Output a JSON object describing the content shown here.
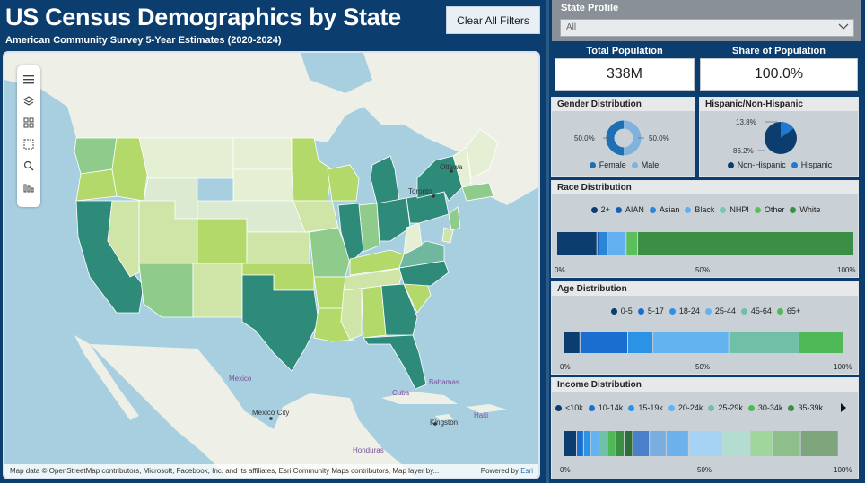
{
  "header": {
    "title": "US Census Demographics by State",
    "subtitle": "American Community Survey 5-Year Estimates (2020-2024)",
    "clear_filters_label": "Clear All Filters"
  },
  "map": {
    "labels": {
      "ottawa": "Ottawa",
      "toronto": "Toronto",
      "mexico": "Mexico",
      "mexico_city": "Mexico City",
      "cuba": "Cuba",
      "bahamas": "Bahamas",
      "kingston": "Kingston",
      "haiti": "Haiti",
      "honduras": "Honduras"
    },
    "attribution": "Map data © OpenStreetMap contributors, Microsoft, Facebook, Inc. and its affiliates, Esri Community Maps contributors, Map layer by...",
    "powered_by": "Powered by",
    "esri": "Esri",
    "tools": [
      "menu-icon",
      "layers-icon",
      "grid-select-icon",
      "rect-select-icon",
      "search-icon",
      "chart-icon"
    ]
  },
  "state_profile": {
    "label": "State Profile",
    "selected": "All"
  },
  "kpis": {
    "total_population_label": "Total Population",
    "total_population_value": "338M",
    "share_label": "Share of Population",
    "share_value": "100.0%"
  },
  "gender": {
    "title": "Gender Distribution",
    "female_pct": "50.0%",
    "male_pct": "50.0%",
    "legend_female": "Female",
    "legend_male": "Male",
    "colors": {
      "female": "#1f6fb5",
      "male": "#7fb3dd"
    }
  },
  "hispanic": {
    "title": "Hispanic/Non-Hispanic",
    "hispanic_pct": "13.8%",
    "non_hispanic_pct": "86.2%",
    "legend_non": "Non-Hispanic",
    "legend_his": "Hispanic",
    "colors": {
      "non": "#0b3d6e",
      "his": "#1f78d1"
    }
  },
  "race": {
    "title": "Race Distribution",
    "legend": [
      {
        "label": "2+",
        "color": "#0b3d6e"
      },
      {
        "label": "AIAN",
        "color": "#1a5fb4"
      },
      {
        "label": "Asian",
        "color": "#2a86d8"
      },
      {
        "label": "Black",
        "color": "#62b0ef"
      },
      {
        "label": "NHPI",
        "color": "#7cc7b0"
      },
      {
        "label": "Other",
        "color": "#5cbf5c"
      },
      {
        "label": "White",
        "color": "#3c8e45"
      }
    ],
    "segments": [
      0.135,
      0.007,
      0.028,
      0.062,
      0.002,
      0.038,
      0.728
    ],
    "axis": [
      "0%",
      "50%",
      "100%"
    ]
  },
  "age": {
    "title": "Age Distribution",
    "legend": [
      {
        "label": "0-5",
        "color": "#0b3d6e"
      },
      {
        "label": "5-17",
        "color": "#1a6ed0"
      },
      {
        "label": "18-24",
        "color": "#2c92e6"
      },
      {
        "label": "25-44",
        "color": "#62b3ef"
      },
      {
        "label": "45-64",
        "color": "#6fc0a6"
      },
      {
        "label": "65+",
        "color": "#4fb857"
      }
    ],
    "segments": [
      0.06,
      0.17,
      0.09,
      0.27,
      0.25,
      0.16
    ],
    "axis": [
      "0%",
      "50%",
      "100%"
    ]
  },
  "income": {
    "title": "Income Distribution",
    "legend": [
      {
        "label": "<10k",
        "color": "#0b3d6e"
      },
      {
        "label": "10-14k",
        "color": "#1a6ed0"
      },
      {
        "label": "15-19k",
        "color": "#2c92e6"
      },
      {
        "label": "20-24k",
        "color": "#62b3ef"
      },
      {
        "label": "25-29k",
        "color": "#6fc0a6"
      },
      {
        "label": "30-34k",
        "color": "#4fb857"
      },
      {
        "label": "35-39k",
        "color": "#3c8e45"
      }
    ],
    "segments": [
      {
        "v": 0.045,
        "c": "#0b3d6e"
      },
      {
        "v": 0.025,
        "c": "#1a6ed0"
      },
      {
        "v": 0.025,
        "c": "#2c92e6"
      },
      {
        "v": 0.03,
        "c": "#62b3ef"
      },
      {
        "v": 0.03,
        "c": "#6fc0a6"
      },
      {
        "v": 0.03,
        "c": "#4fb857"
      },
      {
        "v": 0.03,
        "c": "#3c8e45"
      },
      {
        "v": 0.03,
        "c": "#2e6f39"
      },
      {
        "v": 0.06,
        "c": "#4a7fc9"
      },
      {
        "v": 0.06,
        "c": "#7aaee0"
      },
      {
        "v": 0.08,
        "c": "#6cb0ec"
      },
      {
        "v": 0.12,
        "c": "#a6d2f3"
      },
      {
        "v": 0.1,
        "c": "#b3ddd0"
      },
      {
        "v": 0.08,
        "c": "#9fd69c"
      },
      {
        "v": 0.1,
        "c": "#8ebf8b"
      },
      {
        "v": 0.135,
        "c": "#7ea57b"
      }
    ],
    "axis": [
      "0%",
      "50%",
      "100%"
    ]
  }
}
